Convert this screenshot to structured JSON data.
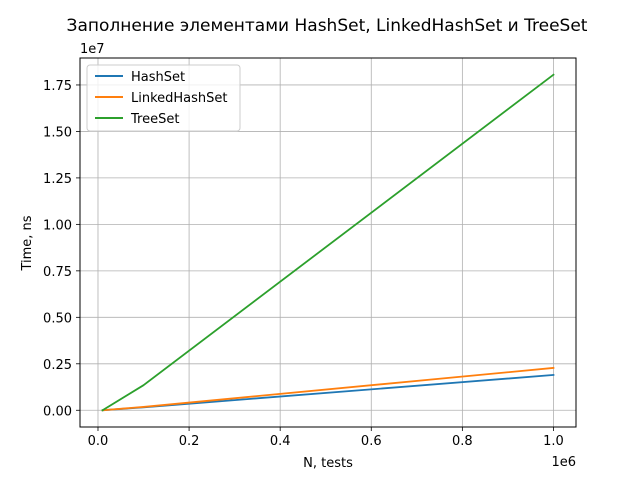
{
  "chart_data": {
    "type": "line",
    "title": "Заполнение элементами HashSet, LinkedHashSet и TreeSet",
    "xlabel": "N, tests",
    "ylabel": "Time, ns",
    "x_offset_label": "1e6",
    "y_offset_label": "1e7",
    "xlim": [
      -0.0395,
      1.0495
    ],
    "ylim": [
      -0.09,
      1.895
    ],
    "x_ticks": [
      0.0,
      0.2,
      0.4,
      0.6,
      0.8,
      1.0
    ],
    "x_tick_labels": [
      "0.0",
      "0.2",
      "0.4",
      "0.6",
      "0.8",
      "1.0"
    ],
    "y_ticks": [
      0.0,
      0.25,
      0.5,
      0.75,
      1.0,
      1.25,
      1.5,
      1.75
    ],
    "y_tick_labels": [
      "0.00",
      "0.25",
      "0.50",
      "0.75",
      "1.00",
      "1.25",
      "1.50",
      "1.75"
    ],
    "grid": true,
    "legend_position": "top-left",
    "series": [
      {
        "name": "HashSet",
        "color": "#1f77b4",
        "x": [
          0.01,
          0.1,
          1.0
        ],
        "y": [
          0.0,
          0.016,
          0.19
        ]
      },
      {
        "name": "LinkedHashSet",
        "color": "#ff7f0e",
        "x": [
          0.01,
          0.1,
          1.0
        ],
        "y": [
          0.0,
          0.018,
          0.228
        ]
      },
      {
        "name": "TreeSet",
        "color": "#2ca02c",
        "x": [
          0.01,
          0.1,
          1.0
        ],
        "y": [
          0.0,
          0.135,
          1.805
        ]
      }
    ]
  }
}
